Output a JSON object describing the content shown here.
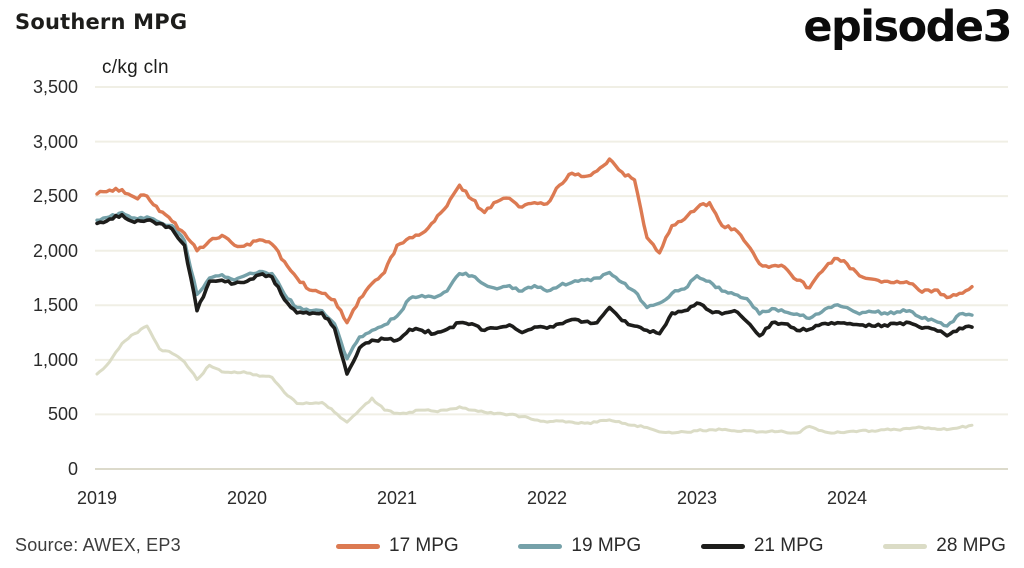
{
  "header": {
    "logo_text": "episode3"
  },
  "chart_data": {
    "type": "line",
    "title": "Southern MPG",
    "ylabel": "c/kg cln",
    "source": "Source: AWEX, EP3",
    "grid": "horizontal",
    "legend_position": "bottom",
    "ylim": [
      0,
      3500
    ],
    "y_ticks": [
      {
        "value": 0,
        "label": "0"
      },
      {
        "value": 500,
        "label": "500"
      },
      {
        "value": 1000,
        "label": "1,000"
      },
      {
        "value": 1500,
        "label": "1,500"
      },
      {
        "value": 2000,
        "label": "2,000"
      },
      {
        "value": 2500,
        "label": "2,500"
      },
      {
        "value": 3000,
        "label": "3,000"
      },
      {
        "value": 3500,
        "label": "3,500"
      }
    ],
    "x_tick_labels": [
      "2019",
      "2020",
      "2021",
      "2022",
      "2023",
      "2024"
    ],
    "x_start": "2019-01",
    "x_end": "2024-11",
    "x_interval": "monthly",
    "series": [
      {
        "name": "17 MPG",
        "color": "#dc7a52",
        "values": [
          2520,
          2555,
          2560,
          2490,
          2500,
          2360,
          2270,
          2160,
          2000,
          2090,
          2140,
          2050,
          2060,
          2100,
          2060,
          1900,
          1750,
          1640,
          1610,
          1550,
          1340,
          1560,
          1700,
          1800,
          2050,
          2120,
          2160,
          2270,
          2410,
          2600,
          2470,
          2350,
          2450,
          2480,
          2400,
          2440,
          2430,
          2600,
          2710,
          2680,
          2730,
          2840,
          2720,
          2650,
          2120,
          1980,
          2230,
          2290,
          2390,
          2440,
          2230,
          2200,
          2060,
          1880,
          1860,
          1850,
          1730,
          1660,
          1810,
          1930,
          1880,
          1770,
          1740,
          1720,
          1720,
          1700,
          1620,
          1640,
          1570,
          1610,
          1670
        ]
      },
      {
        "name": "19 MPG",
        "color": "#75a1a9",
        "values": [
          2280,
          2310,
          2350,
          2300,
          2310,
          2260,
          2230,
          2090,
          1600,
          1750,
          1780,
          1730,
          1780,
          1810,
          1790,
          1600,
          1480,
          1450,
          1450,
          1330,
          1010,
          1210,
          1270,
          1320,
          1400,
          1560,
          1590,
          1570,
          1630,
          1790,
          1770,
          1690,
          1650,
          1680,
          1630,
          1680,
          1630,
          1680,
          1710,
          1730,
          1750,
          1800,
          1710,
          1630,
          1480,
          1520,
          1610,
          1650,
          1770,
          1720,
          1630,
          1600,
          1560,
          1420,
          1470,
          1440,
          1420,
          1380,
          1440,
          1500,
          1480,
          1420,
          1440,
          1430,
          1440,
          1450,
          1380,
          1360,
          1310,
          1420,
          1410
        ]
      },
      {
        "name": "21 MPG",
        "color": "#1d1d1b",
        "values": [
          2250,
          2290,
          2330,
          2260,
          2280,
          2250,
          2200,
          2050,
          1450,
          1720,
          1730,
          1700,
          1720,
          1780,
          1760,
          1550,
          1430,
          1420,
          1430,
          1290,
          870,
          1110,
          1180,
          1190,
          1180,
          1280,
          1270,
          1240,
          1280,
          1340,
          1330,
          1270,
          1290,
          1320,
          1250,
          1300,
          1290,
          1330,
          1370,
          1350,
          1340,
          1480,
          1360,
          1310,
          1270,
          1240,
          1430,
          1450,
          1520,
          1450,
          1420,
          1450,
          1350,
          1220,
          1340,
          1330,
          1270,
          1280,
          1330,
          1330,
          1330,
          1320,
          1310,
          1320,
          1330,
          1340,
          1290,
          1280,
          1220,
          1290,
          1300
        ]
      },
      {
        "name": "28 MPG",
        "color": "#dbdcc6",
        "values": [
          870,
          980,
          1150,
          1240,
          1310,
          1100,
          1060,
          980,
          820,
          950,
          890,
          890,
          880,
          850,
          840,
          700,
          600,
          600,
          610,
          520,
          430,
          540,
          650,
          540,
          510,
          520,
          540,
          530,
          540,
          570,
          540,
          520,
          510,
          500,
          480,
          450,
          430,
          440,
          430,
          420,
          430,
          450,
          420,
          400,
          380,
          340,
          330,
          340,
          350,
          360,
          360,
          350,
          350,
          340,
          350,
          340,
          330,
          390,
          350,
          330,
          340,
          350,
          350,
          360,
          360,
          370,
          380,
          370,
          360,
          380,
          400
        ]
      }
    ]
  }
}
